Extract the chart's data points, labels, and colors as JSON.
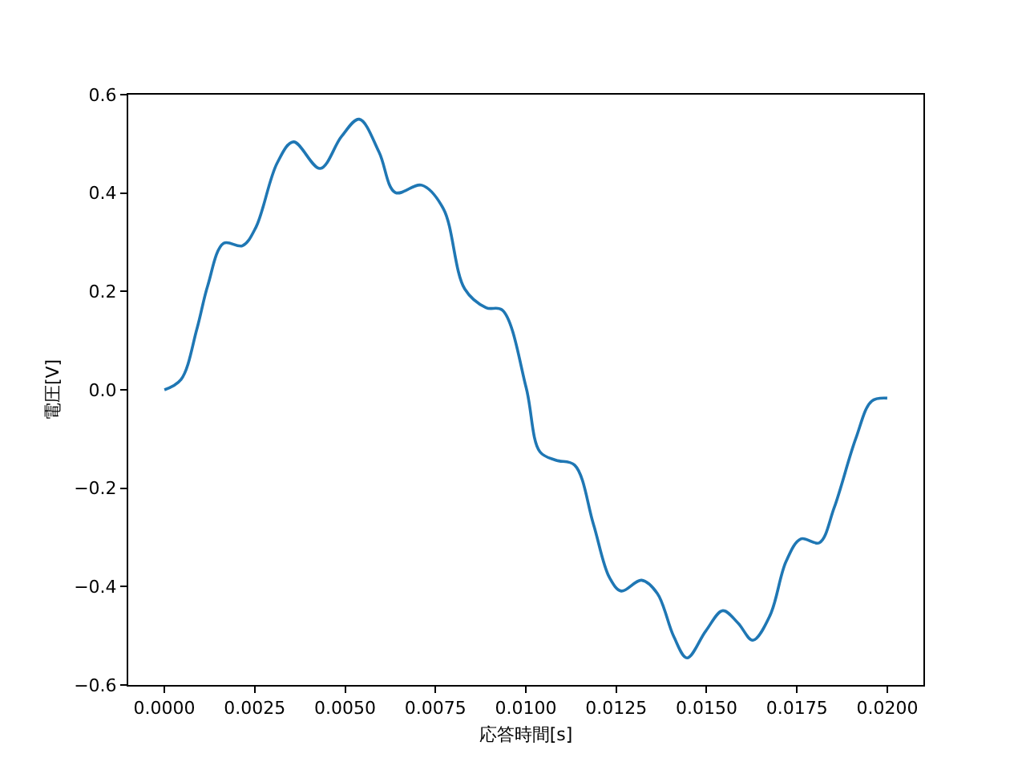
{
  "chart_data": {
    "type": "line",
    "xlabel": "応答時間[s]",
    "ylabel": "電圧[V]",
    "series": [
      {
        "color": "#1f77b4",
        "x": [
          0,
          0.00046,
          0.0009,
          0.0012,
          0.00164,
          0.00216,
          0.00253,
          0.00312,
          0.00357,
          0.00431,
          0.0049,
          0.00539,
          0.00594,
          0.00639,
          0.00712,
          0.00772,
          0.00831,
          0.0089,
          0.00935,
          0.01001,
          0.01039,
          0.01083,
          0.01135,
          0.01187,
          0.01231,
          0.01264,
          0.0132,
          0.01364,
          0.01409,
          0.01446,
          0.01498,
          0.01545,
          0.01587,
          0.01628,
          0.01676,
          0.0172,
          0.01761,
          0.01812,
          0.01853,
          0.01913,
          0.01957,
          0.02
        ],
        "values": [
          0,
          0.021,
          0.124,
          0.212,
          0.298,
          0.293,
          0.33,
          0.461,
          0.504,
          0.45,
          0.515,
          0.55,
          0.483,
          0.401,
          0.416,
          0.368,
          0.205,
          0.167,
          0.162,
          0.004,
          -0.126,
          -0.143,
          -0.153,
          -0.273,
          -0.381,
          -0.409,
          -0.387,
          -0.414,
          -0.501,
          -0.545,
          -0.49,
          -0.449,
          -0.474,
          -0.509,
          -0.458,
          -0.349,
          -0.303,
          -0.311,
          -0.24,
          -0.099,
          -0.023,
          -0.017
        ]
      }
    ],
    "xlim": [
      -0.001,
      0.021
    ],
    "ylim": [
      -0.6,
      0.6
    ],
    "xticks": [
      {
        "value": 0,
        "label": "0.0000"
      },
      {
        "value": 0.0025,
        "label": "0.0025"
      },
      {
        "value": 0.005,
        "label": "0.0050"
      },
      {
        "value": 0.0075,
        "label": "0.0075"
      },
      {
        "value": 0.01,
        "label": "0.0100"
      },
      {
        "value": 0.0125,
        "label": "0.0125"
      },
      {
        "value": 0.015,
        "label": "0.0150"
      },
      {
        "value": 0.0175,
        "label": "0.0175"
      },
      {
        "value": 0.02,
        "label": "0.0200"
      }
    ],
    "yticks": [
      {
        "value": -0.6,
        "label": "−0.6"
      },
      {
        "value": -0.4,
        "label": "−0.4"
      },
      {
        "value": -0.2,
        "label": "−0.2"
      },
      {
        "value": 0,
        "label": "0.0"
      },
      {
        "value": 0.2,
        "label": "0.2"
      },
      {
        "value": 0.4,
        "label": "0.4"
      },
      {
        "value": 0.6,
        "label": "0.6"
      }
    ],
    "marker": "none",
    "line_style": "solid"
  }
}
